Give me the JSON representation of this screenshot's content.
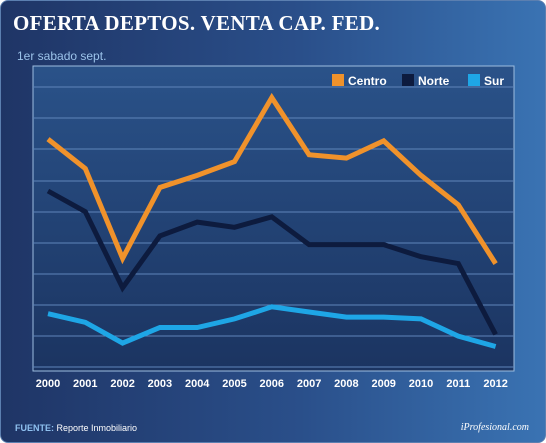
{
  "chart_data": {
    "type": "line",
    "title": "OFERTA DEPTOS. VENTA CAP. FED.",
    "subtitle": "1er sabado sept.",
    "categories": [
      "2000",
      "2001",
      "2002",
      "2003",
      "2004",
      "2005",
      "2006",
      "2007",
      "2008",
      "2009",
      "2010",
      "2011",
      "2012"
    ],
    "series": [
      {
        "name": "Centro",
        "color": "#f0922b",
        "values": [
          88,
          71,
          19,
          60,
          67,
          75,
          112,
          79,
          77,
          87,
          67,
          50,
          16
        ]
      },
      {
        "name": "Norte",
        "color": "#0d1b3e",
        "values": [
          58,
          46,
          2,
          32,
          40,
          37,
          43,
          27,
          27,
          27,
          20,
          16,
          -25
        ]
      },
      {
        "name": "Sur",
        "color": "#1ea6e6",
        "values": [
          -13,
          -18,
          -30,
          -21,
          -21,
          -16,
          -9,
          -12,
          -15,
          -15,
          -16,
          -26,
          -32
        ]
      }
    ],
    "xlabel": "",
    "ylabel": "",
    "ylim": [
      -45,
      117
    ],
    "y_tick_labels_visible": false,
    "grid": "horizontal",
    "legend": "top-right"
  },
  "footer": {
    "source_label": "FUENTE:",
    "source_text": "Reporte Inmobiliario",
    "brand": "iProfesional.com"
  }
}
